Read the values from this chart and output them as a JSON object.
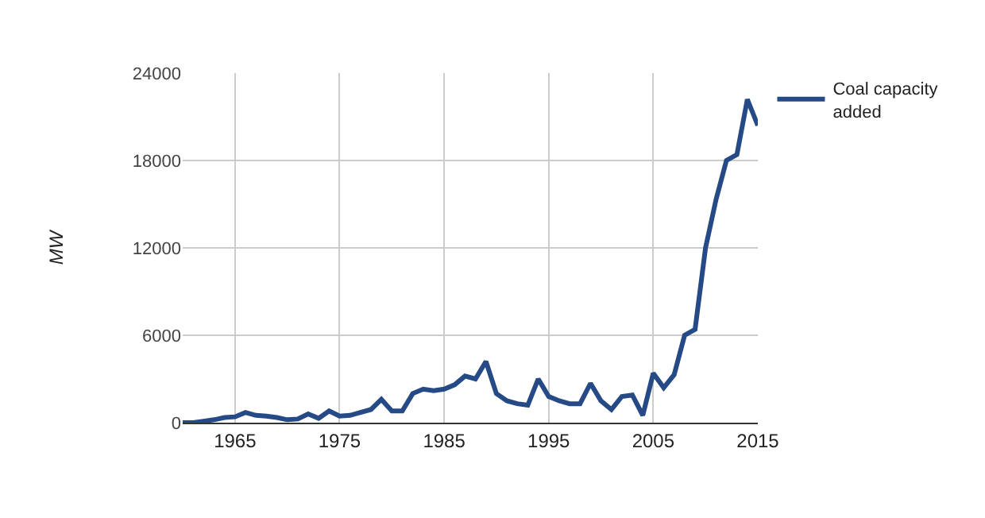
{
  "chart_data": {
    "type": "line",
    "ylabel": "MW",
    "x": [
      1960,
      1961,
      1962,
      1963,
      1964,
      1965,
      1966,
      1967,
      1968,
      1969,
      1970,
      1971,
      1972,
      1973,
      1974,
      1975,
      1976,
      1977,
      1978,
      1979,
      1980,
      1981,
      1982,
      1983,
      1984,
      1985,
      1986,
      1987,
      1988,
      1989,
      1990,
      1991,
      1992,
      1993,
      1994,
      1995,
      1996,
      1997,
      1998,
      1999,
      2000,
      2001,
      2002,
      2003,
      2004,
      2005,
      2006,
      2007,
      2008,
      2009,
      2010,
      2011,
      2012,
      2013,
      2014,
      2015
    ],
    "series": [
      {
        "name": "Coal capacity added",
        "color": "#264a86",
        "values": [
          0,
          0,
          100,
          200,
          350,
          400,
          700,
          500,
          450,
          350,
          200,
          250,
          600,
          300,
          800,
          450,
          500,
          700,
          900,
          1600,
          800,
          800,
          2000,
          2300,
          2200,
          2300,
          2600,
          3200,
          3000,
          4200,
          2000,
          1500,
          1300,
          1200,
          3000,
          1800,
          1500,
          1300,
          1300,
          2700,
          1500,
          900,
          1800,
          1900,
          500,
          3400,
          2400,
          3300,
          6000,
          6400,
          12000,
          15300,
          18000,
          18400,
          22200,
          20400
        ]
      }
    ],
    "xlim": [
      1960,
      2015
    ],
    "xticks": [
      1965,
      1975,
      1985,
      1995,
      2005,
      2015
    ],
    "ylim": [
      0,
      24000
    ],
    "yticks": [
      0,
      6000,
      12000,
      18000,
      24000
    ],
    "grid": true,
    "legend": "top right",
    "marker": "none",
    "line_style": "solid"
  }
}
